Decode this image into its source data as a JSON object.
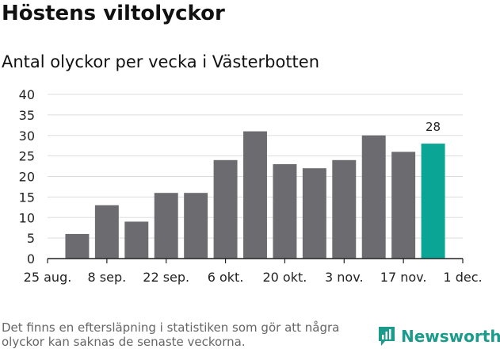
{
  "title": "Höstens viltolyckor",
  "subtitle": "Antal olyckor per vecka i Västerbotten",
  "footnote": "Det finns en eftersläpning i statistiken som gör att några olyckor kan saknas de senaste veckorna.",
  "brand": {
    "name": "Newsworthy",
    "icon": "newsworthy-logo-icon"
  },
  "colors": {
    "bar": "#6c6b70",
    "highlight": "#0aa594",
    "grid": "#dddddd",
    "axis": "#222222",
    "brand": "#1a9b8b"
  },
  "chart_data": {
    "type": "bar",
    "title": "Antal olyckor per vecka i Västerbotten",
    "xlabel": "",
    "ylabel": "",
    "ylim": [
      0,
      40
    ],
    "yticks": [
      0,
      5,
      10,
      15,
      20,
      25,
      30,
      35,
      40
    ],
    "xlim": [
      0,
      14
    ],
    "xtick_labels": [
      "25 aug.",
      "8 sep.",
      "22 sep.",
      "6 okt.",
      "20 okt.",
      "3 nov.",
      "17 nov.",
      "1 dec."
    ],
    "values": [
      6,
      13,
      9,
      16,
      16,
      24,
      31,
      23,
      22,
      24,
      30,
      26,
      28
    ],
    "highlight_index": 12,
    "highlight_label": "28",
    "grid": true
  }
}
